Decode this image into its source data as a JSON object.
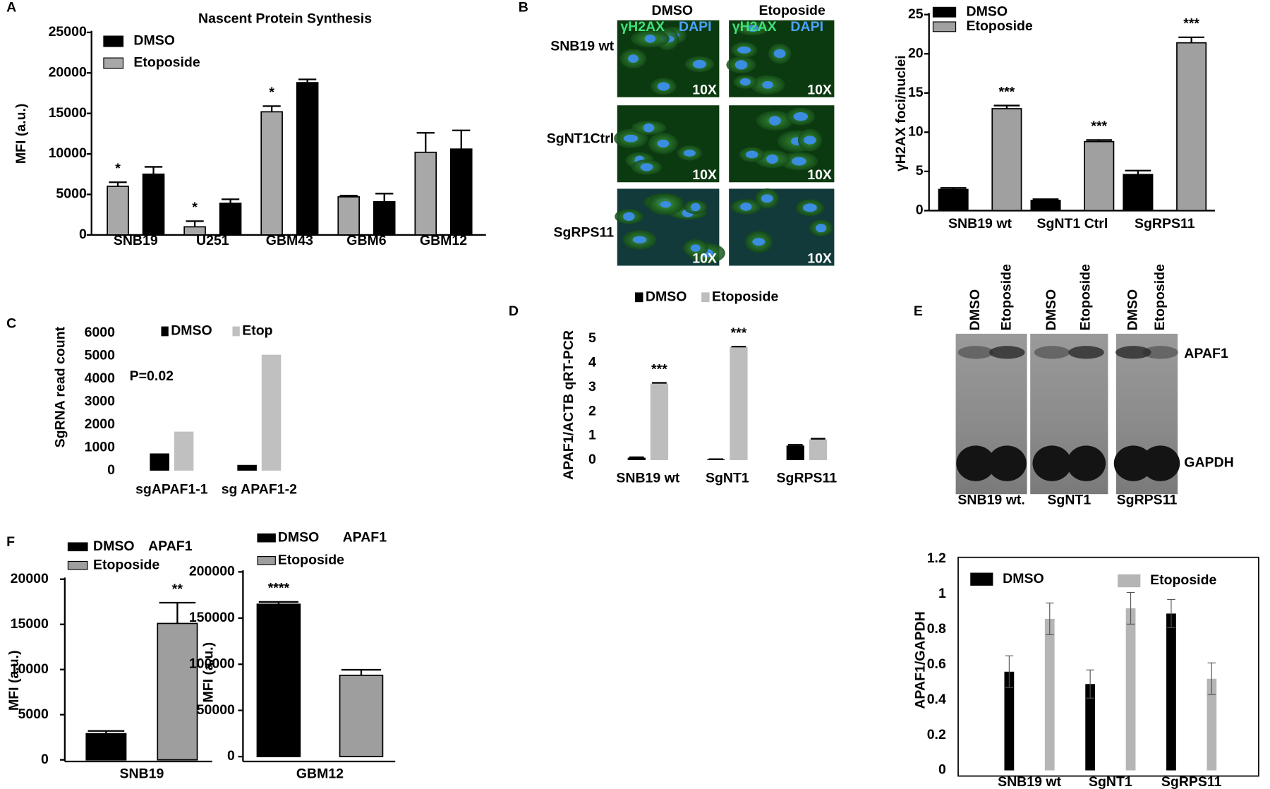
{
  "panel_labels": [
    "A",
    "B",
    "C",
    "D",
    "E",
    "F"
  ],
  "micrographs": {
    "columns": [
      "DMSO",
      "Etoposide"
    ],
    "rows": [
      "SNB19 wt",
      "SgNT1Ctrl",
      "SgRPS11"
    ],
    "stain_labels": [
      "γH2AX",
      "DAPI"
    ],
    "magnification": "10X"
  },
  "blot": {
    "lanes": [
      "DMSO",
      "Etoposide"
    ],
    "bands": [
      "APAF1",
      "GAPDH"
    ],
    "samples": [
      "SNB19 wt.",
      "SgNT1",
      "SgRPS11"
    ]
  },
  "chart_data": [
    {
      "type": "bar",
      "title": "Nascent Protein Synthesis",
      "ylabel": "MFI (a.u.)",
      "categories": [
        "SNB19",
        "U251",
        "GBM43",
        "GBM6",
        "GBM12"
      ],
      "series": [
        {
          "name": "DMSO",
          "color": "#000000",
          "values": [
            7500,
            3900,
            18800,
            4100,
            10600
          ],
          "errors": [
            900,
            500,
            400,
            1000,
            2300
          ]
        },
        {
          "name": "Etoposide",
          "color": "#a8a8a8",
          "values": [
            6000,
            1000,
            15200,
            4700,
            10200
          ],
          "errors": [
            500,
            700,
            700,
            150,
            2400
          ],
          "significance": [
            "*",
            "*",
            "*",
            null,
            null
          ]
        }
      ],
      "ylim": [
        0,
        25000
      ],
      "yticks": [
        0,
        5000,
        10000,
        15000,
        20000,
        25000
      ]
    },
    {
      "type": "bar",
      "ylabel": "γH2AX foci/nuclei",
      "categories": [
        "SNB19 wt",
        "SgNT1 Ctrl",
        "SgRPS11"
      ],
      "series": [
        {
          "name": "DMSO",
          "color": "#000000",
          "values": [
            2.7,
            1.3,
            4.6
          ],
          "errors": [
            0.2,
            0.15,
            0.5
          ]
        },
        {
          "name": "Etoposide",
          "color": "#a0a0a0",
          "values": [
            13,
            8.8,
            21.4
          ],
          "errors": [
            0.4,
            0.2,
            0.7
          ],
          "significance": [
            "***",
            "***",
            "***"
          ]
        }
      ],
      "ylim": [
        0,
        25
      ],
      "yticks": [
        0,
        5,
        10,
        15,
        20,
        25
      ]
    },
    {
      "type": "bar",
      "ylabel": "SgRNA read count",
      "annotations": [
        "P=0.02"
      ],
      "categories": [
        "sgAPAF1-1",
        "sg APAF1-2"
      ],
      "series": [
        {
          "name": "DMSO",
          "color": "#000000",
          "values": [
            750,
            250
          ]
        },
        {
          "name": "Etop",
          "color": "#c0c0c0",
          "values": [
            1700,
            5050
          ]
        }
      ],
      "ylim": [
        0,
        6000
      ],
      "yticks": [
        0,
        1000,
        2000,
        3000,
        4000,
        5000,
        6000
      ]
    },
    {
      "type": "bar",
      "ylabel": "APAF1/ACTB qRT-PCR",
      "categories": [
        "SNB19 wt",
        "SgNT1",
        "SgRPS11"
      ],
      "series": [
        {
          "name": "DMSO",
          "color": "#000000",
          "values": [
            0.1,
            0.03,
            0.6
          ],
          "errors": [
            0.02,
            0.01,
            0.03
          ]
        },
        {
          "name": "Etoposide",
          "color": "#bdbdbd",
          "values": [
            3.15,
            4.65,
            0.85
          ],
          "errors": [
            0.03,
            0.02,
            0.03
          ],
          "significance": [
            "***",
            "***",
            null
          ]
        }
      ],
      "ylim": [
        0,
        5
      ],
      "yticks": [
        0,
        1,
        2,
        3,
        4,
        5
      ]
    },
    {
      "type": "bar",
      "ylabel": "APAF1/GAPDH",
      "categories": [
        "SNB19 wt",
        "SgNT1",
        "SgRPS11"
      ],
      "series": [
        {
          "name": "DMSO",
          "color": "#000000",
          "values": [
            0.56,
            0.49,
            0.89
          ],
          "errors": [
            0.09,
            0.08,
            0.08
          ]
        },
        {
          "name": "Etoposide",
          "color": "#b5b5b5",
          "values": [
            0.86,
            0.92,
            0.52
          ],
          "errors": [
            0.09,
            0.09,
            0.09
          ]
        }
      ],
      "ylim": [
        0,
        1.2
      ],
      "yticks": [
        0,
        0.2,
        0.4,
        0.6,
        0.8,
        1,
        1.2
      ]
    },
    {
      "type": "bar",
      "ylabel": "MFI (a.u.)",
      "annotations": [
        "APAF1"
      ],
      "categories": [
        "SNB19"
      ],
      "series": [
        {
          "name": "DMSO",
          "color": "#000000",
          "values": [
            2900
          ],
          "errors": [
            300
          ]
        },
        {
          "name": "Etoposide",
          "color": "#9e9e9e",
          "values": [
            15100
          ],
          "errors": [
            2300
          ],
          "significance": [
            "**"
          ]
        }
      ],
      "ylim": [
        0,
        20000
      ],
      "yticks": [
        0,
        5000,
        10000,
        15000,
        20000
      ]
    },
    {
      "type": "bar",
      "ylabel": "MFI (a.u.)",
      "annotations": [
        "APAF1"
      ],
      "categories": [
        "GBM12"
      ],
      "series": [
        {
          "name": "DMSO",
          "color": "#000000",
          "values": [
            165000
          ],
          "errors": [
            2500
          ],
          "significance": [
            "****"
          ]
        },
        {
          "name": "Etoposide",
          "color": "#9e9e9e",
          "values": [
            88000
          ],
          "errors": [
            6000
          ]
        }
      ],
      "ylim": [
        0,
        200000
      ],
      "yticks": [
        0,
        50000,
        100000,
        150000,
        200000
      ]
    }
  ]
}
